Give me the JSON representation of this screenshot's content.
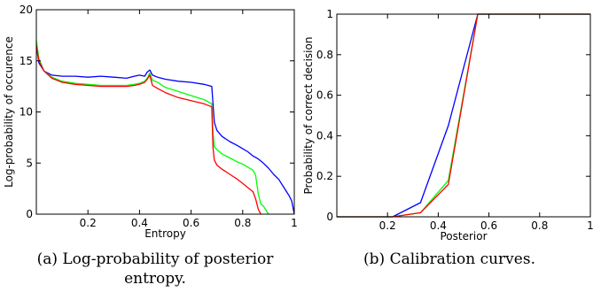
{
  "captions": {
    "a": "(a) Log-probability of posterior entropy.",
    "b": "(b) Calibration curves."
  },
  "chart_data": [
    {
      "type": "line",
      "title": "",
      "xlabel": "Entropy",
      "ylabel": "Log-probability of occurence",
      "xlim": [
        0,
        1
      ],
      "ylim": [
        0,
        20
      ],
      "xticks": [
        0.2,
        0.4,
        0.6,
        0.8,
        1
      ],
      "xtick_labels": [
        "0.2",
        "0.4",
        "0.6",
        "0.8",
        "1"
      ],
      "yticks": [
        0,
        5,
        10,
        15,
        20
      ],
      "ytick_labels": [
        "0",
        "5",
        "10",
        "15",
        "20"
      ],
      "grid": false,
      "legend": "none",
      "series": [
        {
          "color": "#0000ff",
          "x": [
            0.0,
            0.01,
            0.03,
            0.06,
            0.1,
            0.15,
            0.2,
            0.25,
            0.3,
            0.35,
            0.38,
            0.4,
            0.42,
            0.43,
            0.44,
            0.45,
            0.47,
            0.5,
            0.55,
            0.6,
            0.65,
            0.68,
            0.685,
            0.69,
            0.7,
            0.72,
            0.75,
            0.78,
            0.8,
            0.82,
            0.84,
            0.86,
            0.88,
            0.9,
            0.92,
            0.94,
            0.95,
            0.96,
            0.97,
            0.98,
            0.99,
            1.0
          ],
          "y": [
            16.5,
            14.8,
            14.0,
            13.6,
            13.5,
            13.5,
            13.4,
            13.5,
            13.4,
            13.3,
            13.5,
            13.6,
            13.5,
            13.9,
            14.1,
            13.6,
            13.4,
            13.2,
            13.0,
            12.9,
            12.7,
            12.5,
            10.8,
            9.0,
            8.2,
            7.6,
            7.1,
            6.7,
            6.4,
            6.1,
            5.7,
            5.4,
            5.0,
            4.5,
            3.9,
            3.4,
            3.0,
            2.6,
            2.2,
            1.8,
            1.3,
            0.0
          ]
        },
        {
          "color": "#00ff00",
          "x": [
            0.0,
            0.01,
            0.03,
            0.06,
            0.1,
            0.15,
            0.2,
            0.25,
            0.3,
            0.35,
            0.38,
            0.4,
            0.42,
            0.43,
            0.44,
            0.45,
            0.47,
            0.5,
            0.55,
            0.6,
            0.65,
            0.68,
            0.685,
            0.69,
            0.7,
            0.72,
            0.75,
            0.78,
            0.8,
            0.82,
            0.84,
            0.85,
            0.86,
            0.87,
            0.88,
            0.89,
            0.9
          ],
          "y": [
            17.0,
            15.2,
            14.0,
            13.4,
            13.0,
            12.8,
            12.7,
            12.6,
            12.6,
            12.6,
            12.7,
            12.8,
            13.0,
            13.3,
            13.8,
            13.1,
            12.9,
            12.4,
            12.0,
            11.6,
            11.2,
            10.8,
            8.0,
            6.6,
            6.3,
            5.9,
            5.5,
            5.1,
            4.9,
            4.6,
            4.3,
            3.8,
            2.0,
            1.0,
            0.8,
            0.4,
            0.0
          ]
        },
        {
          "color": "#ff0000",
          "x": [
            0.0,
            0.01,
            0.03,
            0.06,
            0.1,
            0.15,
            0.2,
            0.25,
            0.3,
            0.35,
            0.38,
            0.4,
            0.42,
            0.43,
            0.44,
            0.45,
            0.47,
            0.5,
            0.55,
            0.6,
            0.65,
            0.68,
            0.685,
            0.69,
            0.7,
            0.72,
            0.75,
            0.78,
            0.8,
            0.82,
            0.84,
            0.85,
            0.86,
            0.87
          ],
          "y": [
            16.5,
            15.0,
            14.0,
            13.3,
            12.9,
            12.7,
            12.6,
            12.5,
            12.5,
            12.5,
            12.6,
            12.7,
            12.9,
            13.2,
            13.6,
            12.6,
            12.3,
            11.9,
            11.4,
            11.1,
            10.8,
            10.5,
            6.5,
            5.3,
            4.8,
            4.4,
            3.9,
            3.4,
            3.0,
            2.6,
            2.2,
            1.5,
            0.5,
            0.0
          ]
        }
      ]
    },
    {
      "type": "line",
      "title": "",
      "xlabel": "Posterior",
      "ylabel": "Probability of correct decision",
      "xlim": [
        0,
        1
      ],
      "ylim": [
        0,
        1
      ],
      "xticks": [
        0.2,
        0.4,
        0.6,
        0.8,
        1
      ],
      "xtick_labels": [
        "0.2",
        "0.4",
        "0.6",
        "0.8",
        "1"
      ],
      "yticks": [
        0,
        0.2,
        0.4,
        0.6,
        0.8,
        1
      ],
      "ytick_labels": [
        "0",
        "0.2",
        "0.4",
        "0.6",
        "0.8",
        "1"
      ],
      "grid": false,
      "legend": "none",
      "series": [
        {
          "color": "#0000ff",
          "x": [
            0.0,
            0.22,
            0.33,
            0.44,
            0.556,
            0.6,
            0.7,
            0.8,
            0.9,
            1.0
          ],
          "y": [
            0.0,
            0.0,
            0.07,
            0.45,
            1.0,
            1.0,
            1.0,
            1.0,
            1.0,
            1.0
          ]
        },
        {
          "color": "#00ff00",
          "x": [
            0.0,
            0.22,
            0.33,
            0.44,
            0.556,
            0.6,
            0.7,
            0.8,
            0.9,
            1.0
          ],
          "y": [
            0.0,
            0.0,
            0.02,
            0.18,
            1.0,
            1.0,
            1.0,
            1.0,
            1.0,
            1.0
          ]
        },
        {
          "color": "#ff0000",
          "x": [
            0.0,
            0.22,
            0.33,
            0.44,
            0.556,
            0.6,
            0.7,
            0.8,
            0.9,
            1.0
          ],
          "y": [
            0.0,
            0.0,
            0.02,
            0.16,
            1.0,
            1.0,
            1.0,
            1.0,
            1.0,
            1.0
          ]
        }
      ]
    }
  ]
}
